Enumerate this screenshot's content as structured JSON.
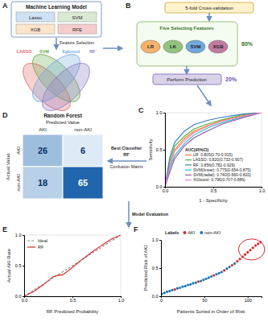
{
  "panels": {
    "a": {
      "label": "A",
      "title": "Machine Learning Model",
      "models": [
        "Lasso",
        "SVM",
        "XGB",
        "RFE"
      ],
      "step": "Feature Selection",
      "venn": [
        "LASSO",
        "SVM",
        "Xgboost",
        "RF"
      ]
    },
    "b": {
      "label": "B",
      "cv": "5-fold Cross-validation",
      "title": "Five Selecting Features",
      "models": [
        "LR",
        "LK",
        "SVM",
        "XGB"
      ],
      "train": "80%",
      "predict": "Perform Prediction",
      "test": "20%"
    },
    "arrows": [
      "Best Classifier",
      "RF",
      "Confusion Matrix",
      "Model Evaluation"
    ]
  },
  "chart_data": [
    {
      "panel": "C",
      "type": "line",
      "xlabel": "1 - Specificity",
      "ylabel": "Sensitivity",
      "legend_title": "AUC(95%CI)",
      "legend": "lower right",
      "xlim": [
        0,
        1
      ],
      "ylim": [
        0,
        1
      ],
      "xticks": [
        {
          "value": 0,
          "label": "0.0"
        },
        {
          "value": 0.5,
          "label": "0.5"
        },
        {
          "value": 1,
          "label": "1.0"
        }
      ],
      "yticks": [
        {
          "value": 0,
          "label": "0.0"
        },
        {
          "value": 0.5,
          "label": "0.5"
        },
        {
          "value": 1,
          "label": "1.0"
        }
      ],
      "series": [
        {
          "name": "LR: 0.805(0.70-0.915)",
          "color": "#ff7f0e",
          "x": [
            0,
            0.05,
            0.1,
            0.2,
            0.3,
            0.45,
            0.6,
            0.8,
            1
          ],
          "values": [
            0,
            0.3,
            0.5,
            0.65,
            0.75,
            0.83,
            0.9,
            0.96,
            1
          ]
        },
        {
          "name": "LASSO: 0.820(0.733-0.907)",
          "color": "#4daf4a",
          "x": [
            0,
            0.05,
            0.1,
            0.2,
            0.3,
            0.45,
            0.6,
            0.8,
            1
          ],
          "values": [
            0,
            0.35,
            0.55,
            0.68,
            0.78,
            0.85,
            0.91,
            0.97,
            1
          ]
        },
        {
          "name": "RF: 0.856(0.782-0.929)",
          "color": "#377eb8",
          "x": [
            0,
            0.05,
            0.1,
            0.2,
            0.3,
            0.45,
            0.6,
            0.8,
            1
          ],
          "values": [
            0,
            0.4,
            0.6,
            0.75,
            0.84,
            0.9,
            0.94,
            0.98,
            1
          ]
        },
        {
          "name": "SVM(linear): 0.775(0.654-0.875)",
          "color": "#17becf",
          "x": [
            0,
            0.05,
            0.1,
            0.2,
            0.3,
            0.45,
            0.6,
            0.8,
            1
          ],
          "values": [
            0,
            0.25,
            0.42,
            0.58,
            0.7,
            0.8,
            0.87,
            0.94,
            1
          ]
        },
        {
          "name": "SVM(radial): 0.740(0.660-0.820)",
          "color": "#984ea3",
          "x": [
            0,
            0.05,
            0.1,
            0.2,
            0.3,
            0.45,
            0.6,
            0.8,
            1
          ],
          "values": [
            0,
            0.2,
            0.38,
            0.55,
            0.66,
            0.76,
            0.85,
            0.93,
            1
          ]
        },
        {
          "name": "XGboost: 0.796(0.707-0.886)",
          "color": "#f781bf",
          "x": [
            0,
            0.05,
            0.1,
            0.2,
            0.3,
            0.45,
            0.6,
            0.8,
            1
          ],
          "values": [
            0,
            0.28,
            0.48,
            0.62,
            0.73,
            0.82,
            0.89,
            0.95,
            1
          ]
        }
      ]
    },
    {
      "panel": "D",
      "type": "heatmap",
      "title": "Random Forest",
      "xlabel": "Predicted Value",
      "ylabel": "Actual Value",
      "x_categories": [
        "AKI",
        "non-AKI"
      ],
      "y_categories": [
        "AKI",
        "non-AKI"
      ],
      "cells": [
        [
          26,
          6
        ],
        [
          18,
          65
        ]
      ],
      "data_labels": true
    },
    {
      "panel": "E",
      "type": "line",
      "xlabel": "RF Predicted Probability",
      "ylabel": "Actual AKI Rate",
      "legend": "upper left",
      "xlim": [
        0,
        1
      ],
      "ylim": [
        0,
        1
      ],
      "xticks": [
        {
          "value": 0,
          "label": "0.0"
        },
        {
          "value": 0.5,
          "label": "0.5"
        },
        {
          "value": 1,
          "label": "1.0"
        }
      ],
      "yticks": [
        {
          "value": 0,
          "label": "0.0"
        },
        {
          "value": 0.5,
          "label": "0.5"
        },
        {
          "value": 1,
          "label": "1.0"
        }
      ],
      "series": [
        {
          "name": "Ideal",
          "color": "#888888",
          "line_style": "dashed",
          "x": [
            0,
            1
          ],
          "values": [
            0,
            1
          ]
        },
        {
          "name": "RF",
          "color": "#d62728",
          "line_style": "solid",
          "x": [
            0,
            0.1,
            0.2,
            0.3,
            0.35,
            0.4,
            0.5,
            0.6,
            0.7,
            0.8,
            0.9,
            1
          ],
          "values": [
            0,
            0.08,
            0.19,
            0.32,
            0.34,
            0.35,
            0.47,
            0.6,
            0.72,
            0.83,
            0.93,
            1
          ]
        }
      ]
    },
    {
      "panel": "F",
      "type": "scatter",
      "xlabel": "Patients Sorted in Order of Risk",
      "ylabel": "Predicted Risk of AKI",
      "legend_title": "Labels",
      "legend": "top",
      "xlim": [
        0,
        116
      ],
      "ylim": [
        0,
        1
      ],
      "xticks": [
        0,
        50,
        100
      ],
      "yticks": [
        {
          "value": 0,
          "label": "0.0"
        },
        {
          "value": 0.5,
          "label": "0.5"
        },
        {
          "value": 1,
          "label": "1.0"
        }
      ],
      "series": [
        {
          "name": "AKI",
          "color": "#d62728",
          "x": [
            16,
            43,
            61,
            73,
            82,
            88,
            91,
            94,
            97,
            100,
            103,
            106,
            109,
            112,
            115
          ],
          "values": [
            0.12,
            0.26,
            0.37,
            0.46,
            0.55,
            0.62,
            0.66,
            0.7,
            0.74,
            0.78,
            0.82,
            0.86,
            0.9,
            0.93,
            0.96
          ]
        },
        {
          "name": "non-AKI",
          "color": "#1f77b4",
          "x": [
            1,
            4,
            7,
            10,
            13,
            19,
            22,
            25,
            28,
            31,
            34,
            37,
            40,
            46,
            49,
            52,
            55,
            58,
            64,
            67,
            70,
            76,
            79,
            85
          ],
          "values": [
            0.04,
            0.06,
            0.08,
            0.09,
            0.11,
            0.14,
            0.15,
            0.17,
            0.18,
            0.2,
            0.21,
            0.23,
            0.24,
            0.27,
            0.29,
            0.31,
            0.33,
            0.35,
            0.39,
            0.41,
            0.43,
            0.49,
            0.52,
            0.58
          ]
        }
      ]
    }
  ]
}
